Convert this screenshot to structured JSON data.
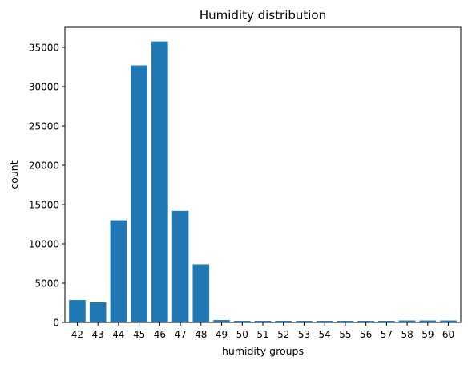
{
  "chart_data": {
    "type": "bar",
    "title": "Humidity distribution",
    "xlabel": "humidity groups",
    "ylabel": "count",
    "categories": [
      "42",
      "43",
      "44",
      "45",
      "46",
      "47",
      "48",
      "49",
      "50",
      "51",
      "52",
      "53",
      "54",
      "55",
      "56",
      "57",
      "58",
      "59",
      "60"
    ],
    "values": [
      2850,
      2550,
      13000,
      32700,
      35750,
      14200,
      7400,
      300,
      200,
      200,
      200,
      200,
      200,
      200,
      200,
      200,
      250,
      250,
      250
    ],
    "yticks": [
      0,
      5000,
      10000,
      15000,
      20000,
      25000,
      30000,
      35000
    ],
    "ylim": [
      0,
      37550
    ],
    "bar_color": "#1f77b4",
    "grid": false
  }
}
